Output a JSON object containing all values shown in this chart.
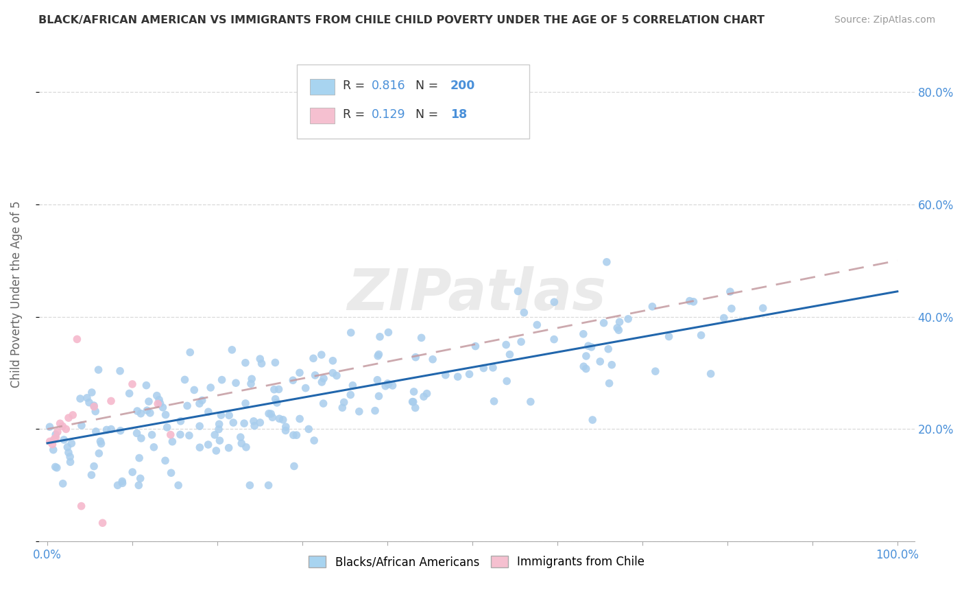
{
  "title": "BLACK/AFRICAN AMERICAN VS IMMIGRANTS FROM CHILE CHILD POVERTY UNDER THE AGE OF 5 CORRELATION CHART",
  "source": "Source: ZipAtlas.com",
  "ylabel": "Child Poverty Under the Age of 5",
  "xlim": [
    0,
    1.0
  ],
  "ylim": [
    0.05,
    0.88
  ],
  "x_ticks": [
    0.0,
    0.1,
    0.2,
    0.3,
    0.4,
    0.5,
    0.6,
    0.7,
    0.8,
    0.9,
    1.0
  ],
  "y_ticks": [
    0.0,
    0.2,
    0.4,
    0.6,
    0.8
  ],
  "R_blue": 0.816,
  "N_blue": 200,
  "R_pink": 0.129,
  "N_pink": 18,
  "blue_dot_color": "#A8CDED",
  "pink_dot_color": "#F5B8CC",
  "trend_blue": "#2166AC",
  "trend_pink": "#C49AA0",
  "watermark": "ZIPatlas",
  "background_color": "#FFFFFF",
  "legend_label_blue": "Blacks/African Americans",
  "legend_label_pink": "Immigrants from Chile",
  "blue_legend_color": "#A8D4F0",
  "pink_legend_color": "#F5C0D0"
}
